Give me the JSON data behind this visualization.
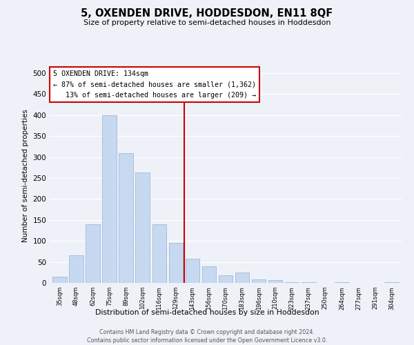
{
  "title": "5, OXENDEN DRIVE, HODDESDON, EN11 8QF",
  "subtitle": "Size of property relative to semi-detached houses in Hoddesdon",
  "xlabel": "Distribution of semi-detached houses by size in Hoddesdon",
  "ylabel": "Number of semi-detached properties",
  "bar_labels": [
    "35sqm",
    "48sqm",
    "62sqm",
    "75sqm",
    "89sqm",
    "102sqm",
    "116sqm",
    "129sqm",
    "143sqm",
    "156sqm",
    "170sqm",
    "183sqm",
    "196sqm",
    "210sqm",
    "223sqm",
    "237sqm",
    "250sqm",
    "264sqm",
    "277sqm",
    "291sqm",
    "304sqm"
  ],
  "bar_heights": [
    15,
    65,
    140,
    400,
    310,
    263,
    140,
    95,
    58,
    40,
    18,
    24,
    8,
    7,
    2,
    1,
    0,
    1,
    0,
    0,
    1
  ],
  "bar_color": "#c6d9f0",
  "bar_edge_color": "#a0b8d8",
  "highlight_line_color": "#cc0000",
  "annotation_title": "5 OXENDEN DRIVE: 134sqm",
  "annotation_line1": "← 87% of semi-detached houses are smaller (1,362)",
  "annotation_line2": "   13% of semi-detached houses are larger (209) →",
  "ylim": [
    0,
    510
  ],
  "yticks": [
    0,
    50,
    100,
    150,
    200,
    250,
    300,
    350,
    400,
    450,
    500
  ],
  "footer1": "Contains HM Land Registry data © Crown copyright and database right 2024.",
  "footer2": "Contains public sector information licensed under the Open Government Licence v3.0.",
  "background_color": "#eef2f8"
}
